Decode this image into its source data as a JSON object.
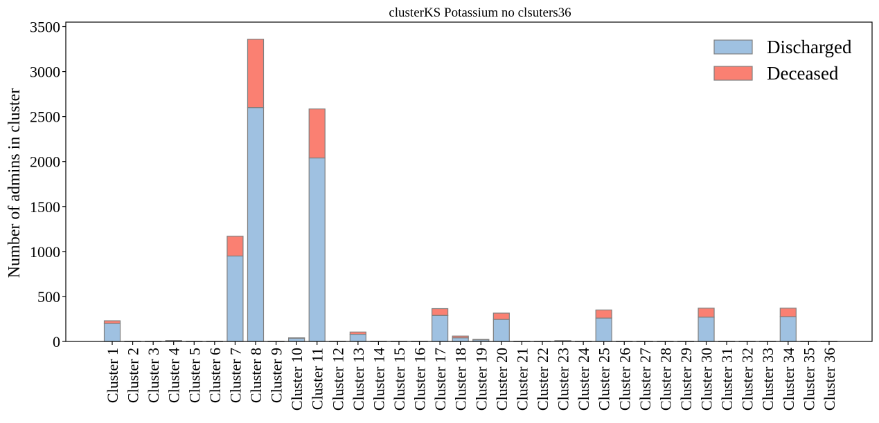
{
  "chart_data": {
    "type": "bar",
    "stacked": true,
    "title": "clusterKS Potassium no clsuters36",
    "xlabel": "",
    "ylabel": "Number of admins in cluster",
    "ylim": [
      0,
      3550
    ],
    "yticks": [
      0,
      500,
      1000,
      1500,
      2000,
      2500,
      3000,
      3500
    ],
    "grid": false,
    "legend_position": "top-right",
    "categories": [
      "Cluster 1",
      "Cluster 2",
      "Cluster 3",
      "Cluster 4",
      "Cluster 5",
      "Cluster 6",
      "Cluster 7",
      "Cluster 8",
      "Cluster 9",
      "Cluster 10",
      "Cluster 11",
      "Cluster 12",
      "Cluster 13",
      "Cluster 14",
      "Cluster 15",
      "Cluster 16",
      "Cluster 17",
      "Cluster 18",
      "Cluster 19",
      "Cluster 20",
      "Cluster 21",
      "Cluster 22",
      "Cluster 23",
      "Cluster 24",
      "Cluster 25",
      "Cluster 26",
      "Cluster 27",
      "Cluster 28",
      "Cluster 29",
      "Cluster 30",
      "Cluster 31",
      "Cluster 32",
      "Cluster 33",
      "Cluster 34",
      "Cluster 35",
      "Cluster 36"
    ],
    "series": [
      {
        "name": "Discharged",
        "color": "#9fc1e1",
        "values": [
          200,
          3,
          3,
          8,
          3,
          3,
          950,
          2600,
          3,
          35,
          2040,
          3,
          80,
          3,
          3,
          3,
          290,
          40,
          18,
          245,
          3,
          3,
          7,
          3,
          260,
          3,
          3,
          3,
          3,
          270,
          3,
          3,
          3,
          275,
          3,
          3
        ]
      },
      {
        "name": "Deceased",
        "color": "#fa8072",
        "values": [
          30,
          0,
          0,
          2,
          0,
          0,
          220,
          760,
          0,
          5,
          545,
          0,
          25,
          0,
          0,
          0,
          75,
          20,
          5,
          70,
          0,
          0,
          2,
          0,
          90,
          0,
          0,
          0,
          0,
          100,
          0,
          0,
          0,
          95,
          0,
          0
        ]
      }
    ],
    "edge_color": "#7f7f7f"
  }
}
